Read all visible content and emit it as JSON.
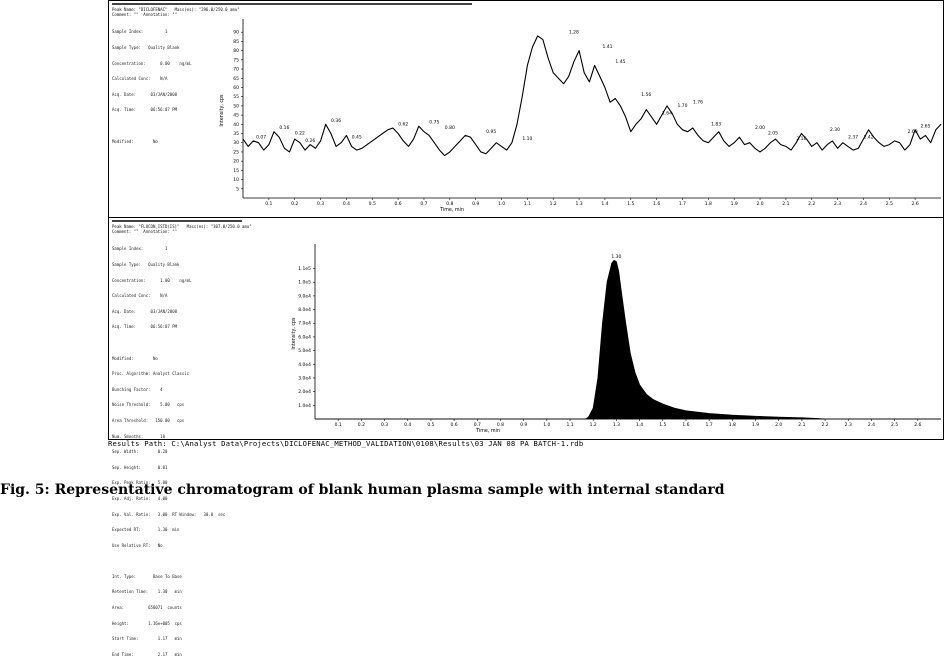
{
  "panel1": {
    "header_lines": [
      "Peak Name: \"DICLOFENAC\"   Mass(es): \"296.0/250.0 amu\"",
      "Comment: \"\"  Annotation: \"\""
    ],
    "meta_lines": [
      "Sample Index:         1",
      "Sample Type:   Quality Blank",
      "Concentration:      0.00    ng/mL",
      "Calculated Conc:    N/A",
      "Acq. Date:      03/JAN/2008",
      "Acq. Time:      06:56:07 PM",
      "",
      "Modified:        No"
    ],
    "ylabel": "Intensity, cps",
    "xlabel": "Time, min"
  },
  "panel2": {
    "header_lines": [
      "Peak Name: \"FLUCON_ISTD(IS)\"   Mass(es): \"307.0/250.0 amu\"",
      "Comment: \"\"  Annotation: \"\""
    ],
    "meta_lines": [
      "Sample Index:         1",
      "Sample Type:   Quality Blank",
      "Concentration:      1.00    ng/mL",
      "Calculated Conc:    N/A",
      "Acq. Date:      03/JAN/2008",
      "Acq. Time:      06:56:07 PM",
      "",
      "Modified:        No",
      "Proc. Algorithm: Analyst Classic",
      "Bunching Factor:    4",
      "Noise Threshold:    5.00   cps",
      "Area Threshold:   150.00   cps",
      "Num. Smooths:       10",
      "Sep. Width:        0.20",
      "Sep. Height:       0.01",
      "Exp. Peak Ratio:   5.00",
      "Exp. Adj. Ratio:   4.00",
      "Exp. Val. Ratio:   3.00  RT Window:   30.0  sec",
      "Expected RT:       1.30  min",
      "Use Relative RT:   No",
      "",
      "Int. Type:       Base To Base",
      "Retention Time:    1.30   min",
      "Area:          658071  counts",
      "Height:        1.16e+005  cps",
      "Start Time:        1.17   min",
      "End Time:          2.17   min"
    ],
    "ylabel": "Intensity, cps",
    "xlabel": "Time, min"
  },
  "results_path": "Results Path: C:\\Analyst Data\\Projects\\DICLOFENAC_METHOD_VALIDATION\\0108\\Results\\03 JAN 08 PA BATCH-1.rdb",
  "caption": "Fig. 5: Representative chromatogram of blank human plasma sample with internal standard",
  "chart_data": [
    {
      "type": "line",
      "title": "",
      "xlabel": "Time, min",
      "ylabel": "Intensity, cps",
      "xlim": [
        0.0,
        2.7
      ],
      "ylim": [
        0,
        95
      ],
      "x_ticks": [
        0.1,
        0.2,
        0.3,
        0.4,
        0.5,
        0.6,
        0.7,
        0.8,
        0.9,
        1.0,
        1.1,
        1.2,
        1.3,
        1.4,
        1.5,
        1.6,
        1.7,
        1.8,
        1.9,
        2.0,
        2.1,
        2.2,
        2.3,
        2.4,
        2.5,
        2.6
      ],
      "y_ticks": [
        5,
        10,
        15,
        20,
        25,
        30,
        35,
        40,
        45,
        50,
        55,
        60,
        65,
        70,
        75,
        80,
        85,
        90
      ],
      "series": [
        {
          "x": [
            0.0,
            0.02,
            0.04,
            0.06,
            0.08,
            0.1,
            0.12,
            0.14,
            0.16,
            0.18,
            0.2,
            0.22,
            0.24,
            0.26,
            0.28,
            0.3,
            0.32,
            0.34,
            0.36,
            0.38,
            0.4,
            0.42,
            0.44,
            0.46,
            0.48,
            0.5,
            0.52,
            0.54,
            0.56,
            0.58,
            0.6,
            0.62,
            0.64,
            0.66,
            0.68,
            0.7,
            0.72,
            0.74,
            0.76,
            0.78,
            0.8,
            0.82,
            0.84,
            0.86,
            0.88,
            0.9,
            0.92,
            0.94,
            0.96,
            0.98,
            1.0,
            1.02,
            1.04,
            1.06,
            1.08,
            1.1,
            1.12,
            1.14,
            1.16,
            1.18,
            1.2,
            1.22,
            1.24,
            1.26,
            1.28,
            1.3,
            1.32,
            1.34,
            1.36,
            1.38,
            1.4,
            1.42,
            1.44,
            1.46,
            1.48,
            1.5,
            1.52,
            1.54,
            1.56,
            1.58,
            1.6,
            1.62,
            1.64,
            1.66,
            1.68,
            1.7,
            1.72,
            1.74,
            1.76,
            1.78,
            1.8,
            1.82,
            1.84,
            1.86,
            1.88,
            1.9,
            1.92,
            1.94,
            1.96,
            1.98,
            2.0,
            2.02,
            2.04,
            2.06,
            2.08,
            2.1,
            2.12,
            2.14,
            2.16,
            2.18,
            2.2,
            2.22,
            2.24,
            2.26,
            2.28,
            2.3,
            2.32,
            2.34,
            2.36,
            2.38,
            2.4,
            2.42,
            2.44,
            2.46,
            2.48,
            2.5,
            2.52,
            2.54,
            2.56,
            2.58,
            2.6,
            2.62,
            2.64,
            2.66,
            2.68,
            2.7
          ],
          "y": [
            32,
            28,
            31,
            30,
            26,
            29,
            36,
            33,
            27,
            25,
            32,
            30,
            26,
            29,
            27,
            31,
            40,
            35,
            28,
            30,
            34,
            28,
            26,
            27,
            29,
            31,
            33,
            35,
            37,
            38,
            35,
            31,
            28,
            32,
            39,
            36,
            34,
            30,
            26,
            23,
            25,
            28,
            31,
            34,
            33,
            29,
            25,
            24,
            27,
            30,
            28,
            26,
            30,
            40,
            55,
            72,
            82,
            88,
            86,
            76,
            68,
            65,
            62,
            66,
            74,
            80,
            68,
            63,
            72,
            66,
            60,
            52,
            54,
            50,
            44,
            36,
            40,
            43,
            48,
            44,
            40,
            45,
            50,
            46,
            40,
            37,
            36,
            38,
            34,
            31,
            30,
            33,
            36,
            31,
            28,
            30,
            33,
            29,
            30,
            27,
            25,
            27,
            30,
            32,
            29,
            28,
            26,
            30,
            35,
            32,
            28,
            30,
            26,
            29,
            31,
            27,
            30,
            28,
            26,
            27,
            32,
            37,
            33,
            30,
            28,
            29,
            31,
            30,
            26,
            29,
            37,
            32,
            34,
            30,
            37,
            40
          ]
        }
      ],
      "peak_labels": [
        {
          "x": 0.07,
          "y": 31,
          "label": "0.07"
        },
        {
          "x": 0.16,
          "y": 36,
          "label": "0.16"
        },
        {
          "x": 0.22,
          "y": 33,
          "label": "0.22"
        },
        {
          "x": 0.26,
          "y": 29,
          "label": "0.26"
        },
        {
          "x": 0.36,
          "y": 40,
          "label": "0.36"
        },
        {
          "x": 0.44,
          "y": 31,
          "label": "0.45"
        },
        {
          "x": 0.62,
          "y": 38,
          "label": "0.62"
        },
        {
          "x": 0.74,
          "y": 39,
          "label": "0.75"
        },
        {
          "x": 0.8,
          "y": 36,
          "label": "0.80"
        },
        {
          "x": 0.96,
          "y": 34,
          "label": "0.95"
        },
        {
          "x": 1.1,
          "y": 30,
          "label": "1.10"
        },
        {
          "x": 1.28,
          "y": 88,
          "label": "1.28"
        },
        {
          "x": 1.41,
          "y": 80,
          "label": "1.41"
        },
        {
          "x": 1.46,
          "y": 72,
          "label": "1.45"
        },
        {
          "x": 1.56,
          "y": 54,
          "label": "1.56"
        },
        {
          "x": 1.64,
          "y": 44,
          "label": "1.64"
        },
        {
          "x": 1.7,
          "y": 48,
          "label": "1.70"
        },
        {
          "x": 1.76,
          "y": 50,
          "label": "1.76"
        },
        {
          "x": 1.83,
          "y": 38,
          "label": "1.83"
        },
        {
          "x": 2.0,
          "y": 36,
          "label": "2.00"
        },
        {
          "x": 2.05,
          "y": 33,
          "label": "2.05"
        },
        {
          "x": 2.16,
          "y": 30,
          "label": "2.16"
        },
        {
          "x": 2.29,
          "y": 35,
          "label": "2.30"
        },
        {
          "x": 2.36,
          "y": 31,
          "label": "2.37"
        },
        {
          "x": 2.42,
          "y": 31,
          "label": "2.42"
        },
        {
          "x": 2.59,
          "y": 34,
          "label": "2.60"
        },
        {
          "x": 2.64,
          "y": 37,
          "label": "2.65"
        }
      ]
    },
    {
      "type": "area",
      "title": "",
      "xlabel": "Time, min",
      "ylabel": "Intensity, cps",
      "xlim": [
        0.0,
        2.7
      ],
      "ylim": [
        0,
        125000
      ],
      "x_ticks": [
        0.1,
        0.2,
        0.3,
        0.4,
        0.5,
        0.6,
        0.7,
        0.8,
        0.9,
        1.0,
        1.1,
        1.2,
        1.3,
        1.4,
        1.5,
        1.6,
        1.7,
        1.8,
        1.9,
        2.0,
        2.1,
        2.2,
        2.3,
        2.4,
        2.5,
        2.6
      ],
      "y_ticks": [
        10000,
        20000,
        30000,
        40000,
        50000,
        60000,
        70000,
        80000,
        90000,
        100000,
        110000
      ],
      "y_tick_labels": [
        "1.0e4",
        "2.0e4",
        "3.0e4",
        "4.0e4",
        "5.0e4",
        "6.0e4",
        "7.0e4",
        "8.0e4",
        "9.0e4",
        "1.0e5",
        "1.1e5"
      ],
      "series": [
        {
          "x": [
            0.0,
            1.16,
            1.17,
            1.18,
            1.2,
            1.22,
            1.24,
            1.26,
            1.28,
            1.29,
            1.3,
            1.31,
            1.32,
            1.34,
            1.36,
            1.38,
            1.4,
            1.43,
            1.46,
            1.5,
            1.55,
            1.6,
            1.7,
            1.8,
            1.9,
            2.0,
            2.1,
            2.17,
            2.2,
            2.7
          ],
          "y": [
            0,
            0,
            200,
            1500,
            8000,
            30000,
            70000,
            100000,
            114000,
            116000,
            115000,
            108000,
            95000,
            70000,
            48000,
            34000,
            25000,
            18000,
            14000,
            11000,
            8000,
            6000,
            4000,
            2800,
            2000,
            1400,
            900,
            400,
            0,
            0
          ]
        }
      ],
      "peak_labels": [
        {
          "x": 1.3,
          "y": 116000,
          "label": "1.30"
        }
      ]
    }
  ]
}
